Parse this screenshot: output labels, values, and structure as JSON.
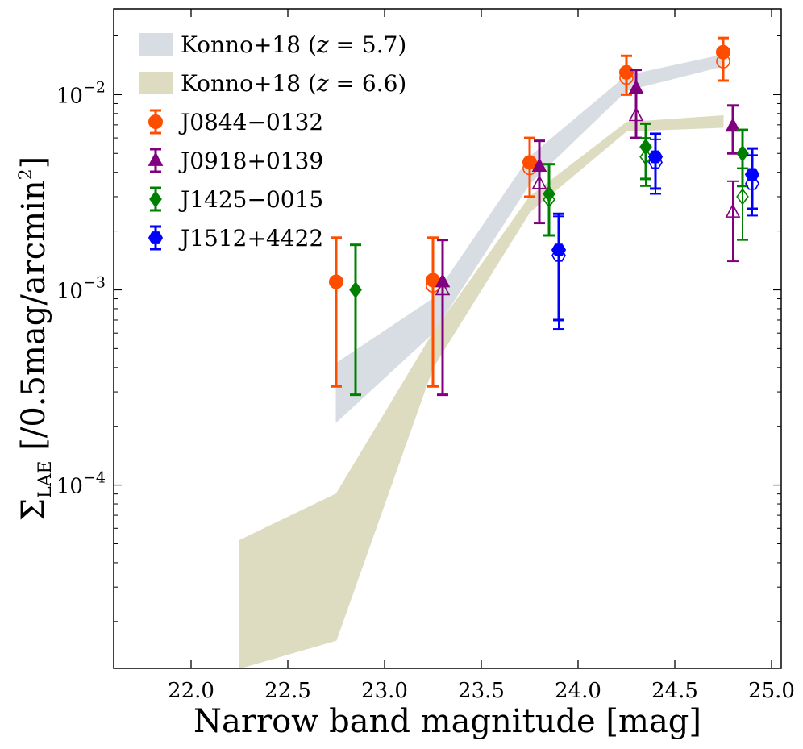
{
  "chart_data": {
    "type": "scatter",
    "title": "",
    "xlabel": "Narrow band magnitude [mag]",
    "ylabel": {
      "main": "Σ",
      "sub": "LAE",
      "unit": " [/0.5mag/arcmin",
      "sup": "2",
      "close": "]"
    },
    "x_axis": {
      "scale": "linear",
      "min": 21.6,
      "max": 25.05,
      "ticks": [
        22.0,
        22.5,
        23.0,
        23.5,
        24.0,
        24.5,
        25.0
      ],
      "tick_labels": [
        "22.0",
        "22.5",
        "23.0",
        "23.5",
        "24.0",
        "24.5",
        "25.0"
      ]
    },
    "y_axis": {
      "scale": "log",
      "min": 1.15e-05,
      "max": 0.0275,
      "major_ticks": [
        0.0001,
        0.001,
        0.01
      ],
      "major_labels": [
        {
          "base": "10",
          "exp": "−4"
        },
        {
          "base": "10",
          "exp": "−3"
        },
        {
          "base": "10",
          "exp": "−2"
        }
      ],
      "minor_ticks": [
        2e-05,
        3e-05,
        4e-05,
        5e-05,
        6e-05,
        7e-05,
        8e-05,
        9e-05,
        0.0002,
        0.0003,
        0.0004,
        0.0005,
        0.0006,
        0.0007,
        0.0008,
        0.0009,
        0.002,
        0.003,
        0.004,
        0.005,
        0.006,
        0.007,
        0.008,
        0.009,
        0.02
      ]
    },
    "bands": [
      {
        "name": "Konno+18 (z = 5.7)",
        "label_main": "Konno+18 (",
        "label_z": "z",
        "label_rest": " = 5.7)",
        "color": "#d8dde3",
        "x": [
          22.75,
          23.25,
          23.75,
          24.25,
          24.75
        ],
        "lower": [
          0.00021,
          0.0006,
          0.0035,
          0.0105,
          0.014
        ],
        "upper": [
          0.00042,
          0.0009,
          0.0048,
          0.0125,
          0.016
        ]
      },
      {
        "name": "Konno+18 (z = 6.6)",
        "label_main": "Konno+18 (",
        "label_z": "z",
        "label_rest": " = 6.6)",
        "color": "#dddcc0",
        "x": [
          22.25,
          22.75,
          23.25,
          23.75,
          24.25,
          24.75
        ],
        "lower": [
          1.15e-05,
          1.6e-05,
          0.0004,
          0.0025,
          0.0065,
          0.0068
        ],
        "upper": [
          5.2e-05,
          9e-05,
          0.0006,
          0.003,
          0.0072,
          0.0078
        ]
      }
    ],
    "series": [
      {
        "name": "J0844−0132",
        "color": "#ff4d00",
        "marker": "circle",
        "filled": [
          {
            "x": 22.75,
            "y": 0.0011,
            "lo": 0.00032,
            "hi": 0.00185
          },
          {
            "x": 23.25,
            "y": 0.00112,
            "lo": 0.00032,
            "hi": 0.00185
          },
          {
            "x": 23.75,
            "y": 0.0045,
            "lo": 0.003,
            "hi": 0.006
          },
          {
            "x": 24.25,
            "y": 0.013,
            "lo": 0.01,
            "hi": 0.0158
          },
          {
            "x": 24.75,
            "y": 0.0165,
            "lo": 0.0118,
            "hi": 0.0195
          }
        ],
        "open": [
          {
            "x": 23.25,
            "y": 0.00105
          },
          {
            "x": 23.75,
            "y": 0.0042
          },
          {
            "x": 24.25,
            "y": 0.0122
          },
          {
            "x": 24.75,
            "y": 0.0148
          }
        ]
      },
      {
        "name": "J0918+0139",
        "color": "#800080",
        "marker": "triangle",
        "filled": [
          {
            "x": 23.3,
            "y": 0.0011,
            "lo": 0.00029,
            "hi": 0.0018
          },
          {
            "x": 23.8,
            "y": 0.0043,
            "lo": 0.0022,
            "hi": 0.0058
          },
          {
            "x": 24.3,
            "y": 0.0108,
            "lo": 0.006,
            "hi": 0.0134
          },
          {
            "x": 24.8,
            "y": 0.0069,
            "lo": 0.005,
            "hi": 0.0088
          }
        ],
        "open": [
          {
            "x": 23.3,
            "y": 0.001
          },
          {
            "x": 23.8,
            "y": 0.0035
          },
          {
            "x": 24.3,
            "y": 0.0078
          },
          {
            "x": 24.8,
            "y": 0.0025,
            "lo": 0.0014,
            "hi": 0.0036
          }
        ]
      },
      {
        "name": "J1425−0015",
        "color": "#008000",
        "marker": "diamond",
        "filled": [
          {
            "x": 22.85,
            "y": 0.001,
            "lo": 0.00029,
            "hi": 0.0017
          },
          {
            "x": 23.85,
            "y": 0.0031,
            "lo": 0.0019,
            "hi": 0.0044
          },
          {
            "x": 24.35,
            "y": 0.0054,
            "lo": 0.0037,
            "hi": 0.0071
          },
          {
            "x": 24.85,
            "y": 0.005,
            "lo": 0.0034,
            "hi": 0.0066
          }
        ],
        "open": [
          {
            "x": 23.85,
            "y": 0.0029
          },
          {
            "x": 24.35,
            "y": 0.0048,
            "lo": 0.0034,
            "hi": 0.006
          },
          {
            "x": 24.85,
            "y": 0.003,
            "lo": 0.0018,
            "hi": 0.0042
          }
        ]
      },
      {
        "name": "J1512+4422",
        "color": "#0000ff",
        "marker": "hexagon",
        "filled": [
          {
            "x": 23.9,
            "y": 0.0016,
            "lo": 0.0007,
            "hi": 0.00245
          },
          {
            "x": 24.4,
            "y": 0.0048,
            "lo": 0.0033,
            "hi": 0.0063
          },
          {
            "x": 24.9,
            "y": 0.0039,
            "lo": 0.0026,
            "hi": 0.0053
          }
        ],
        "open": [
          {
            "x": 23.9,
            "y": 0.0015,
            "lo": 0.00063,
            "hi": 0.00238
          },
          {
            "x": 24.4,
            "y": 0.0045,
            "lo": 0.0031,
            "hi": 0.0059
          },
          {
            "x": 24.9,
            "y": 0.0035,
            "lo": 0.0024,
            "hi": 0.0049
          }
        ]
      }
    ]
  }
}
